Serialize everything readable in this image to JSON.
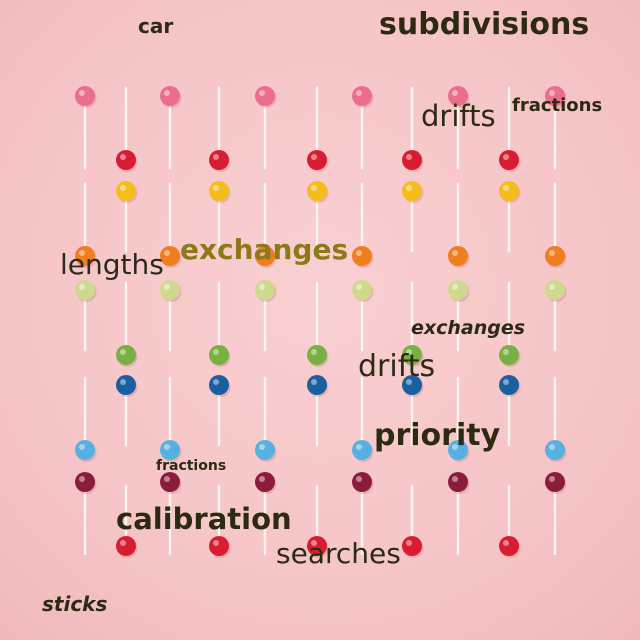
{
  "words": {
    "car": "car",
    "subdivisions": "subdivisions",
    "drifts_1": "drifts",
    "fractions_1": "fractions",
    "exchanges_1": "exchanges",
    "lengths": "lengths",
    "exchanges_2": "exchanges",
    "drifts_2": "drifts",
    "priority": "priority",
    "fractions_2": "fractions",
    "calibration": "calibration",
    "searches": "searches",
    "sticks": "sticks"
  },
  "colors": {
    "background": "#f6c6c8",
    "stick": "#fbf5ee",
    "pink": "#ec6e8d",
    "red": "#d81d33",
    "yellow": "#f5bd1c",
    "orange": "#f07e1e",
    "pale_green": "#cfd98d",
    "green": "#79b042",
    "blue": "#1a5f9f",
    "light_blue": "#56b0e2",
    "maroon": "#8c1d3a"
  }
}
